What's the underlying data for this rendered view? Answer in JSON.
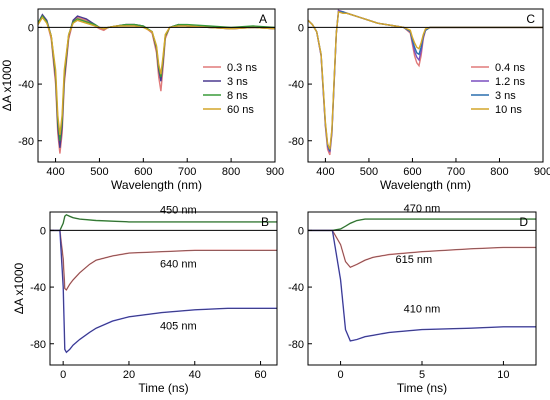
{
  "chart_data": [
    {
      "id": "A",
      "type": "line",
      "panel_label": "A",
      "xlabel": "Wavelength (nm)",
      "ylabel": "ΔA x1000",
      "xlim": [
        360,
        900
      ],
      "ylim": [
        -95,
        13
      ],
      "xticks": [
        400,
        500,
        600,
        700,
        800,
        900
      ],
      "yticks": [
        0,
        -40,
        -80
      ],
      "zero_line": true,
      "legend_position": "right-center",
      "series": [
        {
          "name": "0.3 ns",
          "color": "#e07a7a",
          "x": [
            360,
            370,
            380,
            390,
            400,
            405,
            410,
            415,
            420,
            430,
            440,
            450,
            460,
            470,
            480,
            490,
            500,
            510,
            520,
            540,
            560,
            580,
            600,
            620,
            630,
            635,
            640,
            645,
            650,
            660,
            680,
            700,
            750,
            800,
            850,
            900
          ],
          "y": [
            2,
            8,
            4,
            -8,
            -40,
            -75,
            -89,
            -75,
            -40,
            -8,
            4,
            7,
            6,
            5,
            3,
            1,
            -1,
            -2,
            0,
            1,
            2,
            2,
            1,
            -4,
            -18,
            -35,
            -45,
            -28,
            -8,
            0,
            2,
            1,
            0,
            -1,
            0,
            -1
          ]
        },
        {
          "name": "3 ns",
          "color": "#4b3a8f",
          "x": [
            360,
            370,
            380,
            390,
            400,
            405,
            410,
            415,
            420,
            430,
            440,
            450,
            460,
            470,
            480,
            490,
            500,
            510,
            520,
            540,
            560,
            580,
            600,
            620,
            630,
            635,
            640,
            645,
            650,
            660,
            680,
            700,
            750,
            800,
            850,
            900
          ],
          "y": [
            3,
            9,
            5,
            -6,
            -35,
            -70,
            -85,
            -70,
            -36,
            -6,
            5,
            8,
            7,
            6,
            4,
            2,
            0,
            -1,
            0,
            1,
            2,
            2,
            1,
            -3,
            -15,
            -30,
            -38,
            -24,
            -6,
            0,
            2,
            1,
            0,
            -1,
            0,
            -1
          ]
        },
        {
          "name": "8 ns",
          "color": "#3a9b3a",
          "x": [
            360,
            370,
            380,
            390,
            400,
            405,
            410,
            415,
            420,
            430,
            440,
            450,
            460,
            470,
            480,
            490,
            500,
            510,
            520,
            540,
            560,
            580,
            600,
            620,
            630,
            635,
            640,
            645,
            650,
            660,
            680,
            700,
            750,
            800,
            850,
            900
          ],
          "y": [
            3,
            8,
            4,
            -6,
            -33,
            -66,
            -80,
            -66,
            -33,
            -5,
            4,
            6,
            5,
            4,
            3,
            2,
            0,
            -1,
            0,
            1,
            2,
            2,
            1,
            -3,
            -14,
            -28,
            -35,
            -22,
            -6,
            0,
            2,
            2,
            1,
            0,
            1,
            0
          ]
        },
        {
          "name": "60 ns",
          "color": "#d4a62a",
          "x": [
            360,
            370,
            380,
            390,
            400,
            405,
            410,
            415,
            420,
            430,
            440,
            450,
            460,
            470,
            480,
            490,
            500,
            510,
            520,
            540,
            560,
            580,
            600,
            620,
            630,
            635,
            640,
            645,
            650,
            660,
            680,
            700,
            750,
            800,
            850,
            900
          ],
          "y": [
            2,
            7,
            3,
            -6,
            -30,
            -62,
            -76,
            -62,
            -30,
            -5,
            3,
            5,
            4,
            3,
            2,
            1,
            0,
            -1,
            0,
            1,
            1,
            1,
            0,
            -3,
            -13,
            -26,
            -33,
            -20,
            -5,
            0,
            1,
            1,
            0,
            -1,
            0,
            -1
          ]
        }
      ]
    },
    {
      "id": "C",
      "type": "line",
      "panel_label": "C",
      "xlabel": "Wavelength (nm)",
      "ylabel": "",
      "xlim": [
        360,
        900
      ],
      "ylim": [
        -95,
        13
      ],
      "xticks": [
        400,
        500,
        600,
        700,
        800,
        900
      ],
      "yticks": [
        0,
        -40,
        -80
      ],
      "zero_line": true,
      "legend_position": "right-center",
      "series": [
        {
          "name": "0.4 ns",
          "color": "#e07a7a",
          "x": [
            360,
            370,
            380,
            390,
            395,
            400,
            405,
            410,
            415,
            420,
            425,
            430,
            440,
            450,
            460,
            480,
            500,
            520,
            540,
            560,
            580,
            595,
            600,
            605,
            610,
            615,
            620,
            625,
            630,
            640,
            660,
            700,
            750,
            800,
            850,
            900
          ],
          "y": [
            5,
            2,
            -3,
            -20,
            -45,
            -70,
            -86,
            -90,
            -75,
            -40,
            -5,
            12,
            11,
            10,
            9,
            7,
            5,
            3,
            2,
            1,
            0,
            -4,
            -12,
            -20,
            -25,
            -27,
            -20,
            -8,
            -2,
            0,
            0,
            0,
            0,
            0,
            0,
            0
          ]
        },
        {
          "name": "1.2 ns",
          "color": "#7a4fbf",
          "x": [
            360,
            370,
            380,
            390,
            395,
            400,
            405,
            410,
            415,
            420,
            425,
            430,
            440,
            450,
            460,
            480,
            500,
            520,
            540,
            560,
            580,
            595,
            600,
            605,
            610,
            615,
            620,
            625,
            630,
            640,
            660,
            700,
            750,
            800,
            850,
            900
          ],
          "y": [
            5,
            2,
            -3,
            -20,
            -44,
            -69,
            -84,
            -88,
            -74,
            -39,
            -4,
            12,
            11,
            10,
            9,
            7,
            5,
            3,
            2,
            1,
            0,
            -3,
            -10,
            -17,
            -21,
            -23,
            -17,
            -7,
            -2,
            0,
            0,
            0,
            0,
            0,
            0,
            0
          ]
        },
        {
          "name": "3 ns",
          "color": "#2a6fae",
          "x": [
            360,
            370,
            380,
            390,
            395,
            400,
            405,
            410,
            415,
            420,
            425,
            430,
            440,
            450,
            460,
            480,
            500,
            520,
            540,
            560,
            580,
            595,
            600,
            605,
            610,
            615,
            620,
            625,
            630,
            640,
            660,
            700,
            750,
            800,
            850,
            900
          ],
          "y": [
            5,
            2,
            -3,
            -19,
            -43,
            -68,
            -83,
            -87,
            -73,
            -38,
            -4,
            11,
            11,
            10,
            9,
            7,
            5,
            3,
            2,
            1,
            0,
            -3,
            -9,
            -14,
            -18,
            -19,
            -14,
            -6,
            -2,
            0,
            0,
            0,
            0,
            0,
            0,
            0
          ]
        },
        {
          "name": "10 ns",
          "color": "#d4a62a",
          "x": [
            360,
            370,
            380,
            390,
            395,
            400,
            405,
            410,
            415,
            420,
            425,
            430,
            440,
            450,
            460,
            480,
            500,
            520,
            540,
            560,
            580,
            595,
            600,
            605,
            610,
            615,
            620,
            625,
            630,
            640,
            660,
            700,
            750,
            800,
            850,
            900
          ],
          "y": [
            5,
            2,
            -3,
            -19,
            -42,
            -67,
            -82,
            -86,
            -72,
            -37,
            -4,
            11,
            10,
            10,
            9,
            7,
            5,
            3,
            2,
            1,
            0,
            -2,
            -7,
            -11,
            -14,
            -15,
            -11,
            -5,
            -1,
            0,
            0,
            0,
            0,
            0,
            0,
            0
          ]
        }
      ]
    },
    {
      "id": "B",
      "type": "line",
      "panel_label": "B",
      "xlabel": "Time (ns)",
      "ylabel": "ΔA x1000",
      "xlim": [
        -4,
        65
      ],
      "ylim": [
        -95,
        13
      ],
      "xticks": [
        0,
        20,
        40,
        60
      ],
      "yticks": [
        0,
        -40,
        -80
      ],
      "zero_line": true,
      "annotations": [
        {
          "text": "450 nm",
          "x": 35,
          "y": 12
        },
        {
          "text": "640 nm",
          "x": 35,
          "y": -26
        },
        {
          "text": "405 nm",
          "x": 35,
          "y": -70
        }
      ],
      "series": [
        {
          "name": "450 nm",
          "color": "#3a9b3a",
          "x": [
            -4,
            -2,
            -1,
            0,
            0.5,
            1,
            2,
            3,
            5,
            10,
            20,
            30,
            40,
            50,
            60,
            65
          ],
          "y": [
            0,
            0,
            0,
            5,
            10,
            11,
            10,
            9,
            8,
            7,
            6,
            6,
            6,
            6,
            6,
            6
          ]
        },
        {
          "name": "640 nm",
          "color": "#e07a7a",
          "x": [
            -4,
            -2,
            -1,
            0,
            0.5,
            1,
            2,
            3,
            5,
            8,
            10,
            15,
            20,
            30,
            40,
            50,
            60,
            65
          ],
          "y": [
            0,
            0,
            0,
            -20,
            -41,
            -42,
            -38,
            -35,
            -30,
            -24,
            -21,
            -18,
            -16,
            -15,
            -14,
            -14,
            -14,
            -14
          ]
        },
        {
          "name": "405 nm",
          "color": "#4a4ad0",
          "x": [
            -4,
            -2,
            -1,
            0,
            0.5,
            1,
            2,
            3,
            5,
            8,
            10,
            15,
            20,
            30,
            40,
            50,
            60,
            65
          ],
          "y": [
            0,
            0,
            0,
            -40,
            -84,
            -86,
            -84,
            -81,
            -77,
            -72,
            -69,
            -64,
            -61,
            -58,
            -56,
            -55,
            -55,
            -55
          ]
        }
      ]
    },
    {
      "id": "D",
      "type": "line",
      "panel_label": "D",
      "xlabel": "Time (ns)",
      "ylabel": "",
      "xlim": [
        -2,
        12
      ],
      "ylim": [
        -95,
        13
      ],
      "xticks": [
        0,
        5,
        10
      ],
      "yticks": [
        0,
        -40,
        -80
      ],
      "zero_line": true,
      "annotations": [
        {
          "text": "470 nm",
          "x": 5,
          "y": 13
        },
        {
          "text": "615 nm",
          "x": 4.5,
          "y": -23
        },
        {
          "text": "410 nm",
          "x": 5,
          "y": -58
        }
      ],
      "series": [
        {
          "name": "470 nm",
          "color": "#3a9b3a",
          "x": [
            -2,
            -1,
            -0.5,
            0,
            0.3,
            0.6,
            1,
            1.5,
            2,
            3,
            5,
            8,
            10,
            12
          ],
          "y": [
            0,
            0,
            0,
            1,
            3,
            5,
            7,
            8,
            8,
            8,
            8,
            8,
            8,
            8
          ]
        },
        {
          "name": "615 nm",
          "color": "#e07a7a",
          "x": [
            -2,
            -1,
            -0.5,
            0,
            0.3,
            0.6,
            1,
            1.5,
            2,
            3,
            5,
            8,
            10,
            12
          ],
          "y": [
            0,
            0,
            0,
            -10,
            -22,
            -26,
            -24,
            -21,
            -19,
            -17,
            -15,
            -13,
            -12,
            -12
          ]
        },
        {
          "name": "410 nm",
          "color": "#4a4ad0",
          "x": [
            -2,
            -1,
            -0.5,
            0,
            0.3,
            0.6,
            1,
            1.5,
            2,
            3,
            5,
            8,
            10,
            12
          ],
          "y": [
            0,
            0,
            0,
            -35,
            -70,
            -78,
            -77,
            -75,
            -74,
            -72,
            -70,
            -69,
            -68,
            -68
          ]
        }
      ]
    }
  ]
}
